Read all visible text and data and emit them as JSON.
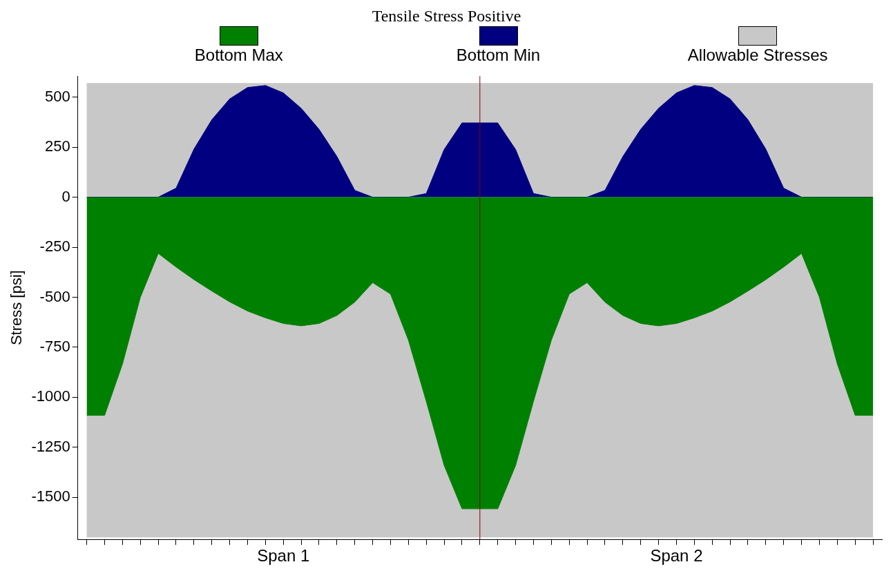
{
  "chart_data": {
    "type": "area",
    "title": "Tensile Stress Positive",
    "ylabel": "Stress [psi]",
    "legend": "top",
    "categories": [
      null,
      null,
      null,
      null,
      null,
      null,
      null,
      null,
      null,
      null,
      null,
      "Span 1",
      null,
      null,
      null,
      null,
      null,
      null,
      null,
      null,
      null,
      null,
      null,
      null,
      null,
      null,
      null,
      null,
      null,
      null,
      null,
      null,
      null,
      "Span 2",
      null,
      null,
      null,
      null,
      null,
      null,
      null,
      null,
      null,
      null,
      null
    ],
    "series": [
      {
        "name": "Bottom Max",
        "color": "#008000",
        "values": [
          -1090,
          -1090,
          -833,
          -500,
          -281,
          -349,
          -412,
          -469,
          -523,
          -569,
          -603,
          -631,
          -643,
          -631,
          -591,
          -524,
          -427,
          -484,
          -714,
          -1020,
          -1340,
          -1557,
          -1557,
          -1557,
          -1340,
          -1020,
          -714,
          -484,
          -427,
          -524,
          -591,
          -631,
          -643,
          -631,
          -603,
          -569,
          -523,
          -469,
          -412,
          -349,
          -281,
          -500,
          -833,
          -1090,
          -1090
        ]
      },
      {
        "name": "Bottom Min",
        "color": "#000080",
        "values": [
          0,
          0,
          0,
          0,
          0,
          45,
          240,
          387,
          491,
          548,
          558,
          521,
          444,
          339,
          203,
          34,
          0,
          0,
          0,
          18,
          238,
          371,
          371,
          371,
          238,
          18,
          0,
          0,
          0,
          34,
          203,
          339,
          444,
          521,
          558,
          548,
          491,
          387,
          240,
          45,
          0,
          0,
          0,
          0,
          0
        ]
      }
    ],
    "bands": [
      {
        "axis": "y",
        "from": -1700,
        "to": 570,
        "label": "Allowable Stresses",
        "color": "#c8c8c8"
      }
    ],
    "ylim": [
      -1710,
      605
    ],
    "yticks": [
      -1500,
      -1250,
      -1000,
      -750,
      -500,
      -250,
      0,
      250,
      500
    ]
  }
}
